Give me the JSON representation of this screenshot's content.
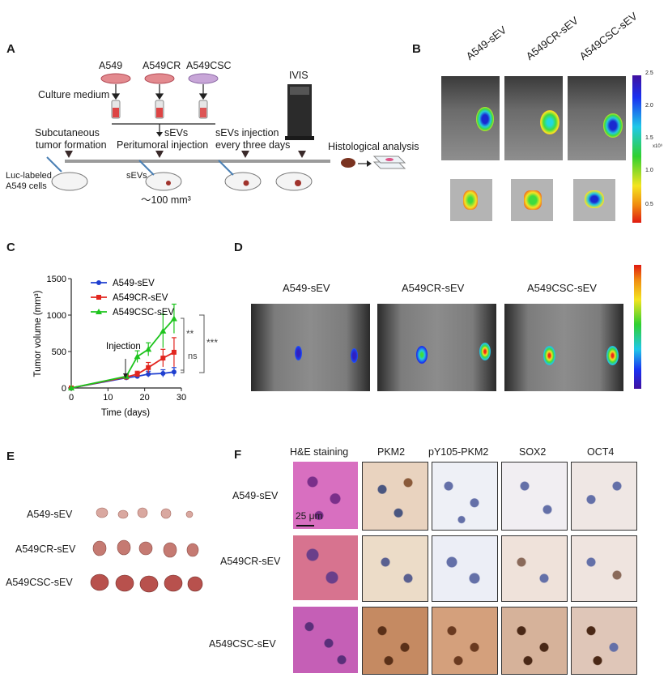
{
  "panels": {
    "a": "A",
    "b": "B",
    "c": "C",
    "d": "D",
    "e": "E",
    "f": "F"
  },
  "panel_a": {
    "cells": [
      "A549",
      "A549CR",
      "A549CSC"
    ],
    "culture_medium": "Culture medium",
    "ivis": "IVIS",
    "sevs": "sEVs",
    "subcutaneous_1": "Subcutaneous",
    "subcutaneous_2": "tumor formation",
    "peritumoral": "Peritumoral injection",
    "sev_injection_1": "sEVs injection",
    "sev_injection_2": "every three days",
    "histology": "Histological analysis",
    "luc_1": "Luc-labeled",
    "luc_2": "A549 cells",
    "sevs_small": "sEVs",
    "volume": "～100 mm³"
  },
  "panel_b": {
    "groups": [
      "A549-sEV",
      "A549CR-sEV",
      "A549CSC-sEV"
    ],
    "colorbar_ticks": [
      "2.5",
      "2.0",
      "1.5",
      "1.0",
      "0.5"
    ],
    "colorbar_unit": "x10⁹"
  },
  "chart_data": {
    "type": "line",
    "xlabel": "Time (days)",
    "ylabel": "Tumor volume (mm³)",
    "xlim": [
      0,
      30
    ],
    "ylim": [
      0,
      1500
    ],
    "xticks": [
      0,
      10,
      20,
      30
    ],
    "yticks": [
      0,
      500,
      1000,
      1500
    ],
    "legend_position": "top-left",
    "x": [
      0,
      15,
      18,
      21,
      25,
      28
    ],
    "series": [
      {
        "name": "A549-sEV",
        "color": "#1f3fd0",
        "marker": "circle",
        "values": [
          0,
          140,
          160,
          190,
          200,
          220
        ],
        "errors": [
          0,
          20,
          30,
          40,
          50,
          60
        ]
      },
      {
        "name": "A549CR-sEV",
        "color": "#e2261f",
        "marker": "square",
        "values": [
          0,
          150,
          190,
          280,
          410,
          490
        ],
        "errors": [
          0,
          25,
          40,
          70,
          120,
          200
        ]
      },
      {
        "name": "A549CSC-sEV",
        "color": "#1ec41e",
        "marker": "triangle",
        "values": [
          0,
          160,
          430,
          530,
          780,
          950
        ],
        "errors": [
          0,
          30,
          80,
          90,
          230,
          200
        ]
      }
    ],
    "annotations": {
      "injection": "Injection",
      "sig1": "**",
      "sig2": "ns",
      "sig3": "***"
    }
  },
  "panel_d": {
    "groups": [
      "A549-sEV",
      "A549CR-sEV",
      "A549CSC-sEV"
    ]
  },
  "panel_e": {
    "groups": [
      "A549-sEV",
      "A549CR-sEV",
      "A549CSC-sEV"
    ]
  },
  "panel_f": {
    "columns": [
      "H&E staining",
      "PKM2",
      "pY105-PKM2",
      "SOX2",
      "OCT4"
    ],
    "rows": [
      "A549-sEV",
      "A549CR-sEV",
      "A549CSC-sEV"
    ],
    "scale_bar": "25 μm"
  }
}
